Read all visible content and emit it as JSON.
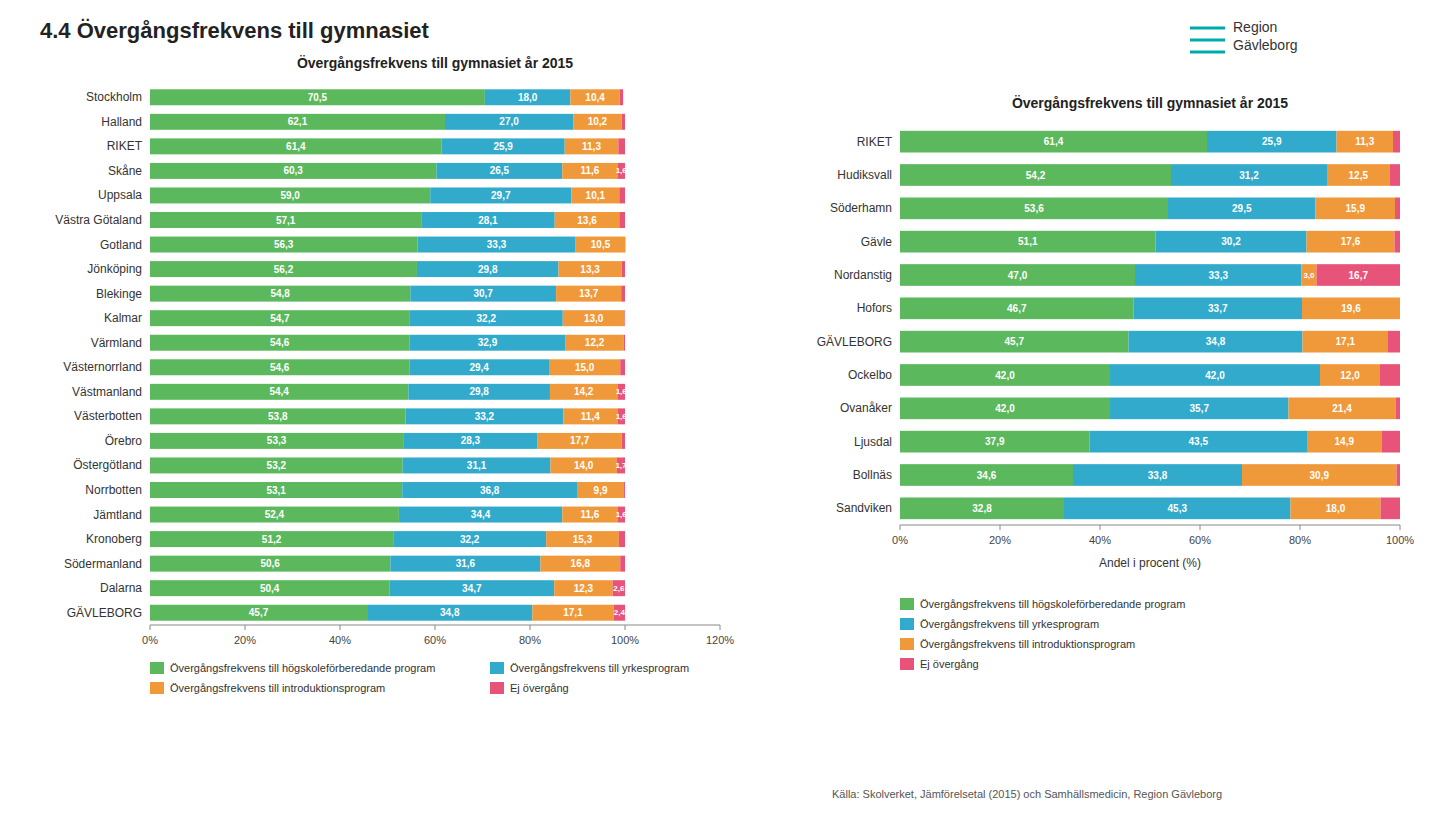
{
  "title": "4.4 Övergångsfrekvens till gymnasiet",
  "source": "Källa: Skolverket, Jämförelsetal (2015) och Samhällsmedicin, Region Gävleborg",
  "annotations": [
    "Region\nGävleborg"
  ],
  "chart_data": [
    {
      "type": "bar",
      "orientation": "horizontal",
      "stacked": true,
      "data_labels": true,
      "grid": false,
      "legend": "bottom",
      "title": "Övergångsfrekvens till gymnasiet år 2015",
      "categories": [
        "Stockholm",
        "Halland",
        "RIKET",
        "Skåne",
        "Uppsala",
        "Västra Götaland",
        "Gotland",
        "Jönköping",
        "Blekinge",
        "Kalmar",
        "Värmland",
        "Västernorrland",
        "Västmanland",
        "Västerbotten",
        "Örebro",
        "Östergötland",
        "Norrbotten",
        "Jämtland",
        "Kronoberg",
        "Södermanland",
        "Dalarna",
        "GÄVLEBORG"
      ],
      "xlim": [
        0,
        120
      ],
      "xticks": [
        {
          "value": 0,
          "label": "0%"
        },
        {
          "value": 20,
          "label": "20%"
        },
        {
          "value": 40,
          "label": "40%"
        },
        {
          "value": 60,
          "label": "60%"
        },
        {
          "value": 80,
          "label": "80%"
        },
        {
          "value": 100,
          "label": "100%"
        },
        {
          "value": 120,
          "label": "120%"
        }
      ],
      "series": [
        {
          "name": "Övergångsfrekvens till högskoleförberedande program",
          "color": "#5BB85D",
          "values": [
            70.5,
            62.1,
            61.4,
            60.3,
            59.0,
            57.1,
            56.3,
            56.2,
            54.8,
            54.7,
            54.6,
            54.6,
            54.4,
            53.8,
            53.3,
            53.2,
            53.1,
            52.4,
            51.2,
            50.6,
            50.4,
            45.7
          ],
          "value_labels": [
            "70,5",
            "62,1",
            "61,4",
            "60,3",
            "59,0",
            "57,1",
            "56,3",
            "56,2",
            "54,8",
            "54,7",
            "54,6",
            "54,6",
            "54,4",
            "53,8",
            "53,3",
            "53,2",
            "53,1",
            "52,4",
            "51,2",
            "50,6",
            "50,4",
            "45,7"
          ]
        },
        {
          "name": "Övergångsfrekvens till yrkesprogram",
          "color": "#31AACC",
          "values": [
            18.0,
            27.0,
            25.9,
            26.5,
            29.7,
            28.1,
            33.3,
            29.8,
            30.7,
            32.2,
            32.9,
            29.4,
            29.8,
            33.2,
            28.3,
            31.1,
            36.8,
            34.4,
            32.2,
            31.6,
            34.7,
            34.8
          ],
          "value_labels": [
            "18,0",
            "27,0",
            "25,9",
            "26,5",
            "29,7",
            "28,1",
            "33,3",
            "29,8",
            "30,7",
            "32,2",
            "32,9",
            "29,4",
            "29,8",
            "33,2",
            "28,3",
            "31,1",
            "36,8",
            "34,4",
            "32,2",
            "31,6",
            "34,7",
            "34,8"
          ]
        },
        {
          "name": "Övergångsfrekvens till introduktionsprogram",
          "color": "#F0993A",
          "values": [
            10.4,
            10.2,
            11.3,
            11.6,
            10.1,
            13.6,
            10.5,
            13.3,
            13.7,
            13.0,
            12.2,
            15.0,
            14.2,
            11.4,
            17.7,
            14.0,
            9.9,
            11.6,
            15.3,
            16.8,
            12.3,
            17.1
          ],
          "value_labels": [
            "10,4",
            "10,2",
            "11,3",
            "11,6",
            "10,1",
            "13,6",
            "10,5",
            "13,3",
            "13,7",
            "13,0",
            "12,2",
            "15,0",
            "14,2",
            "11,4",
            "17,7",
            "14,0",
            "9,9",
            "11,6",
            "15,3",
            "16,8",
            "12,3",
            "17,1"
          ]
        },
        {
          "name": "Ej övergång",
          "color": "#E8537A",
          "values": [
            0.7,
            0.7,
            1.4,
            1.6,
            1.2,
            1.2,
            0.0,
            0.7,
            0.8,
            0.1,
            0.3,
            1.0,
            1.6,
            1.6,
            0.7,
            1.7,
            0.2,
            1.6,
            1.3,
            1.0,
            2.6,
            2.4
          ],
          "value_labels": [
            null,
            null,
            null,
            "1,6",
            null,
            null,
            null,
            null,
            null,
            null,
            null,
            null,
            "1,6",
            "1,6",
            null,
            "1,7",
            null,
            "1,6",
            null,
            null,
            "2,6",
            "2,4"
          ]
        }
      ]
    },
    {
      "type": "bar",
      "orientation": "horizontal",
      "stacked": true,
      "data_labels": true,
      "grid": false,
      "legend": "bottom",
      "title": "Övergångsfrekvens till gymnasiet år 2015",
      "xlabel": "Andel i procent (%)",
      "categories": [
        "RIKET",
        "Hudiksvall",
        "Söderhamn",
        "Gävle",
        "Nordanstig",
        "Hofors",
        "GÄVLEBORG",
        "Ockelbo",
        "Ovanåker",
        "Ljusdal",
        "Bollnäs",
        "Sandviken"
      ],
      "xlim": [
        0,
        100
      ],
      "xticks": [
        {
          "value": 0,
          "label": "0%"
        },
        {
          "value": 20,
          "label": "20%"
        },
        {
          "value": 40,
          "label": "40%"
        },
        {
          "value": 60,
          "label": "60%"
        },
        {
          "value": 80,
          "label": "80%"
        },
        {
          "value": 100,
          "label": "100%"
        }
      ],
      "series": [
        {
          "name": "Övergångsfrekvens till högskoleförberedande program",
          "color": "#5BB85D",
          "values": [
            61.4,
            54.2,
            53.6,
            51.1,
            47.0,
            46.7,
            45.7,
            42.0,
            42.0,
            37.9,
            34.6,
            32.8
          ],
          "value_labels": [
            "61,4",
            "54,2",
            "53,6",
            "51,1",
            "47,0",
            "46,7",
            "45,7",
            "42,0",
            "42,0",
            "37,9",
            "34,6",
            "32,8"
          ]
        },
        {
          "name": "Övergångsfrekvens till yrkesprogram",
          "color": "#31AACC",
          "values": [
            25.9,
            31.2,
            29.5,
            30.2,
            33.3,
            33.7,
            34.8,
            42.0,
            35.7,
            43.5,
            33.8,
            45.3
          ],
          "value_labels": [
            "25,9",
            "31,2",
            "29,5",
            "30,2",
            "33,3",
            "33,7",
            "34,8",
            "42,0",
            "35,7",
            "43,5",
            "33,8",
            "45,3"
          ]
        },
        {
          "name": "Övergångsfrekvens till introduktionsprogram",
          "color": "#F0993A",
          "values": [
            11.3,
            12.5,
            15.9,
            17.6,
            3.0,
            19.6,
            17.1,
            12.0,
            21.4,
            14.9,
            30.9,
            18.0
          ],
          "value_labels": [
            "11,3",
            "12,5",
            "15,9",
            "17,6",
            "3,0",
            "19,6",
            "17,1",
            "12,0",
            "21,4",
            "14,9",
            "30,9",
            "18,0"
          ]
        },
        {
          "name": "Ej övergång",
          "color": "#E8537A",
          "values": [
            1.4,
            2.1,
            1.0,
            1.1,
            16.7,
            0.0,
            2.4,
            4.0,
            0.9,
            3.7,
            0.7,
            3.9
          ],
          "value_labels": [
            null,
            null,
            null,
            null,
            "16,7",
            null,
            null,
            null,
            null,
            null,
            null,
            null
          ]
        }
      ]
    }
  ]
}
